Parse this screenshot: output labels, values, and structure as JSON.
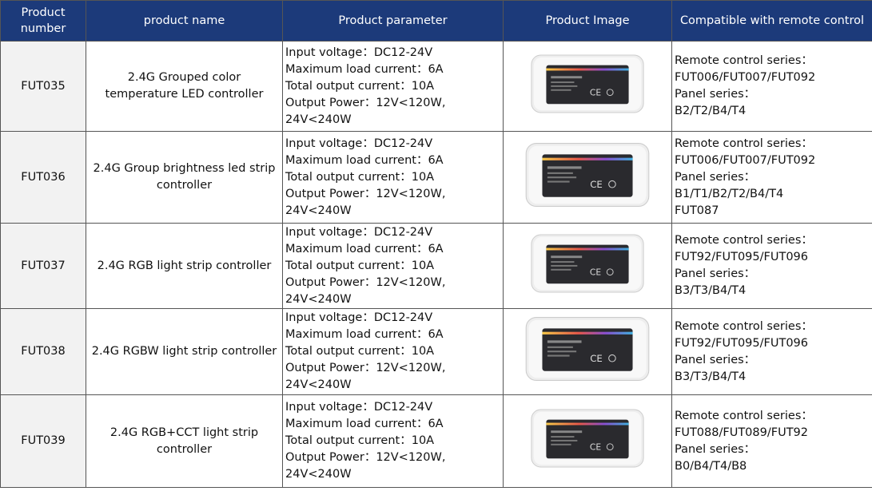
{
  "table": {
    "headers": [
      "Product number",
      "product name",
      "Product parameter",
      "Product Image",
      "Compatible with remote control"
    ],
    "rows": [
      [
        "FUT035",
        "2.4G Grouped color temperature LED controller",
        [
          "Input voltage：DC12-24V",
          "Maximum load current：6A",
          "Total output current：10A",
          "Output Power：12V<120W, 24V<240W"
        ],
        [
          "Remote control series：",
          "FUT006/FUT007/FUT092",
          "Panel series：",
          "B2/T2/B4/T4"
        ]
      ],
      [
        "FUT036",
        "2.4G Group brightness led strip controller",
        [
          "Input voltage：DC12-24V",
          "Maximum load current：6A",
          "Total output current：10A",
          "Output Power：12V<120W, 24V<240W"
        ],
        [
          "Remote control series：",
          "FUT006/FUT007/FUT092",
          "Panel series：",
          "B1/T1/B2/T2/B4/T4",
          "FUT087"
        ]
      ],
      [
        "FUT037",
        "2.4G RGB light strip controller",
        [
          "Input voltage：DC12-24V",
          "Maximum load current：6A",
          "Total output current：10A",
          "Output Power：12V<120W, 24V<240W"
        ],
        [
          "Remote control series：",
          "FUT92/FUT095/FUT096",
          "Panel series：",
          "B3/T3/B4/T4"
        ]
      ],
      [
        "FUT038",
        "2.4G RGBW light strip controller",
        [
          "Input voltage：DC12-24V",
          "Maximum load current：6A",
          "Total output current：10A",
          "Output Power：12V<120W, 24V<240W"
        ],
        [
          "Remote control series：",
          "FUT92/FUT095/FUT096",
          "Panel series：",
          "B3/T3/B4/T4"
        ]
      ],
      [
        "FUT039",
        "2.4G RGB+CCT light strip controller",
        [
          "Input voltage：DC12-24V",
          "Maximum load current：6A",
          "Total output current：10A",
          "Output Power：12V<120W, 24V<240W"
        ],
        [
          "Remote control series：",
          "FUT088/FUT089/FUT92",
          "Panel series：",
          "B0/B4/T4/B8"
        ]
      ]
    ]
  }
}
